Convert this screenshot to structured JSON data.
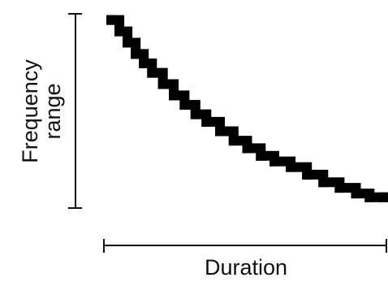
{
  "chart_data": {
    "type": "line",
    "title": "",
    "xlabel": "Duration",
    "ylabel_lines": [
      "Frequency",
      "range"
    ],
    "xlim": [
      0,
      1
    ],
    "ylim": [
      0,
      1
    ],
    "grid": false,
    "legend": "none",
    "series": [
      {
        "color": "#000000",
        "style": "stepped",
        "x": [
          0.0,
          0.03,
          0.06,
          0.09,
          0.12,
          0.15,
          0.19,
          0.23,
          0.27,
          0.31,
          0.35,
          0.4,
          0.45,
          0.5,
          0.55,
          0.6,
          0.66,
          0.72,
          0.78,
          0.84,
          0.9,
          0.95,
          1.0
        ],
        "y": [
          0.98,
          0.92,
          0.86,
          0.8,
          0.75,
          0.7,
          0.64,
          0.58,
          0.53,
          0.48,
          0.44,
          0.39,
          0.34,
          0.3,
          0.26,
          0.23,
          0.2,
          0.16,
          0.12,
          0.09,
          0.06,
          0.04,
          0.04
        ]
      }
    ]
  }
}
